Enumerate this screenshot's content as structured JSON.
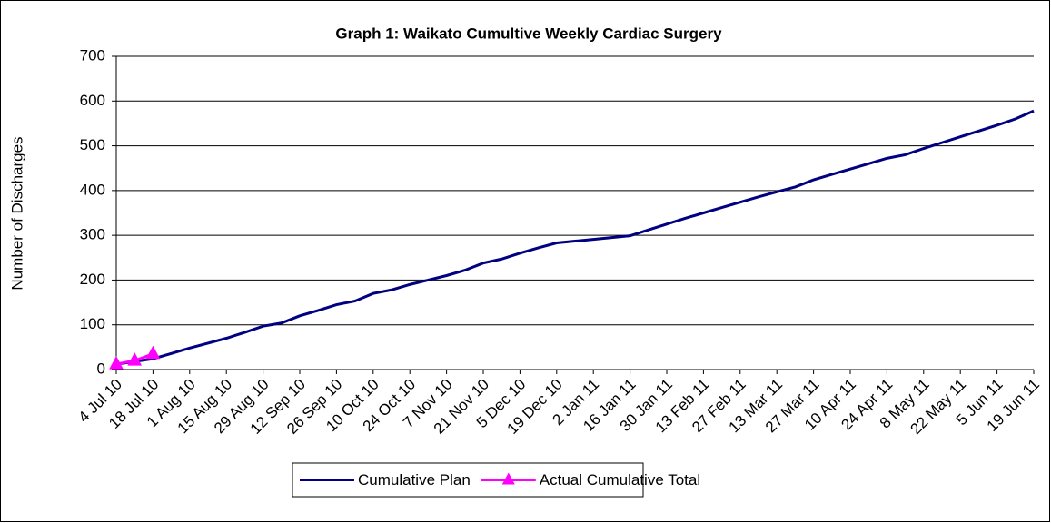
{
  "chart_data": {
    "type": "line",
    "title": "Graph 1: Waikato Cumultive Weekly Cardiac Surgery",
    "y_label": "Number of Discharges",
    "categories": [
      "4 Jul 10",
      null,
      "18 Jul 10",
      null,
      "1 Aug 10",
      null,
      "15 Aug 10",
      null,
      "29 Aug 10",
      null,
      "12 Sep 10",
      null,
      "26 Sep 10",
      null,
      "10 Oct 10",
      null,
      "24 Oct 10",
      null,
      "7 Nov 10",
      null,
      "21 Nov 10",
      null,
      "5 Dec 10",
      null,
      "19 Dec 10",
      null,
      "2 Jan 11",
      null,
      "16 Jan 11",
      null,
      "30 Jan 11",
      null,
      "13 Feb 11",
      null,
      "27 Feb 11",
      null,
      "13 Mar 11",
      null,
      "27 Mar 11",
      null,
      "10 Apr 11",
      null,
      "24 Apr 11",
      null,
      "8 May 11",
      null,
      "22 May 11",
      null,
      "5 Jun 11",
      null,
      "19 Jun 11"
    ],
    "series": [
      {
        "name": "Cumulative Plan",
        "color": "#000080",
        "marker": "none",
        "values": [
          12,
          18,
          24,
          36,
          48,
          59,
          70,
          83,
          97,
          104,
          120,
          132,
          145,
          153,
          170,
          178,
          190,
          200,
          210,
          222,
          238,
          247,
          260,
          272,
          283,
          287,
          291,
          295,
          299,
          312,
          325,
          338,
          350,
          362,
          374,
          386,
          397,
          408,
          424,
          436,
          448,
          460,
          472,
          480,
          494,
          507,
          520,
          533,
          546,
          560,
          578
        ]
      },
      {
        "name": "Actual Cumulative Total",
        "color": "#ff00ff",
        "marker": "triangle",
        "values": [
          12,
          20,
          35,
          null,
          null,
          null,
          null,
          null,
          null,
          null,
          null,
          null,
          null,
          null,
          null,
          null,
          null,
          null,
          null,
          null,
          null,
          null,
          null,
          null,
          null,
          null,
          null,
          null,
          null,
          null,
          null,
          null,
          null,
          null,
          null,
          null,
          null,
          null,
          null,
          null,
          null,
          null,
          null,
          null,
          null,
          null,
          null,
          null,
          null,
          null,
          null
        ]
      }
    ],
    "ylim": [
      0,
      700
    ],
    "yticks": [
      0,
      100,
      200,
      300,
      400,
      500,
      600,
      700
    ],
    "grid": true,
    "legend": "bottom"
  }
}
